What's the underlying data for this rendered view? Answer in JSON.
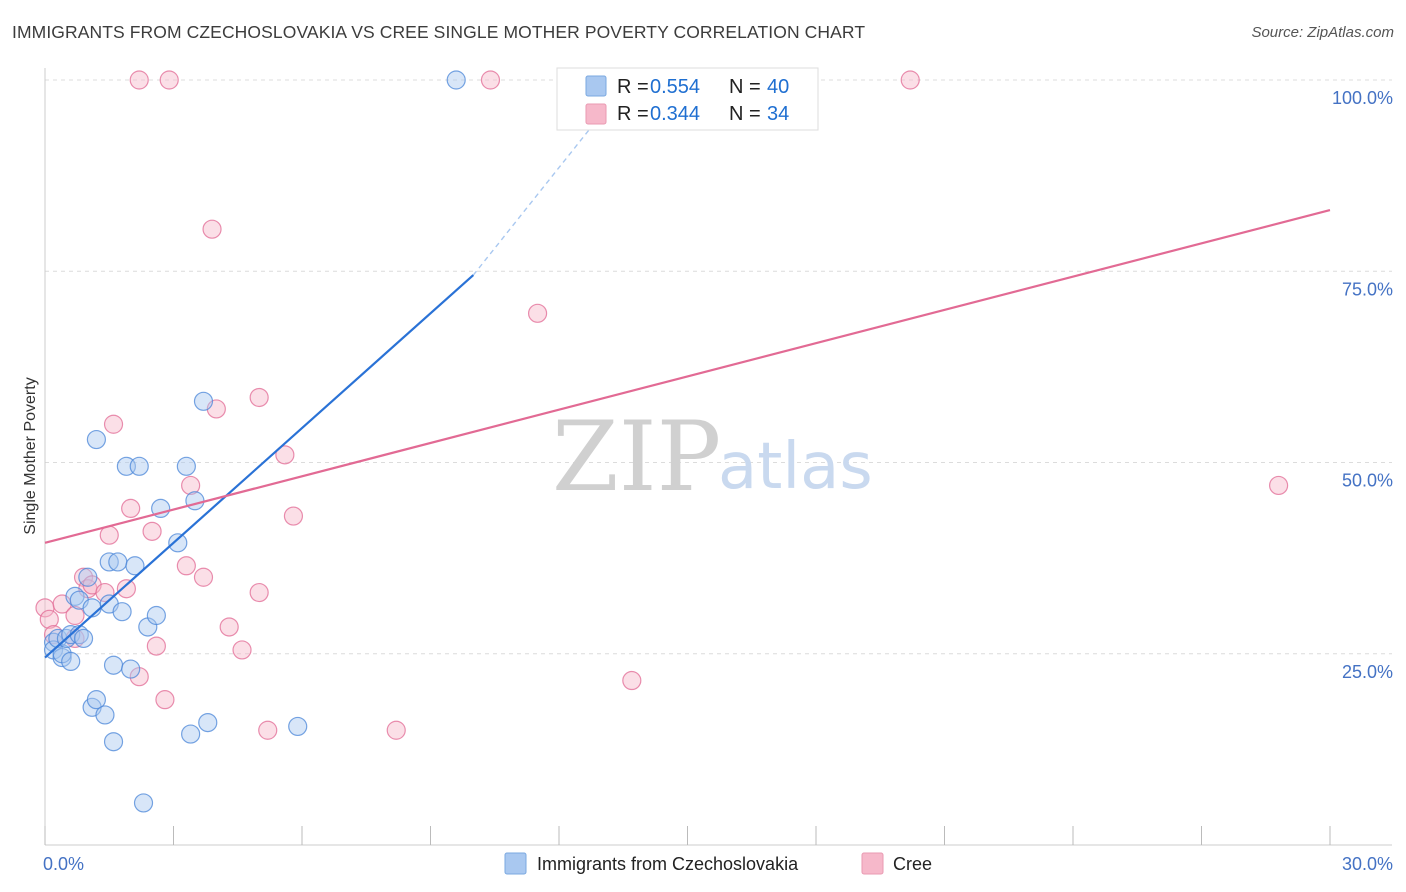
{
  "header": {
    "title": "IMMIGRANTS FROM CZECHOSLOVAKIA VS CREE SINGLE MOTHER POVERTY CORRELATION CHART",
    "source": "Source: ZipAtlas.com"
  },
  "watermark": {
    "zip": "ZIP",
    "atlas": "atlas"
  },
  "legend_box": {
    "rows": [
      {
        "r_label": "R =",
        "r_value": "0.554",
        "n_label": "N =",
        "n_value": "40",
        "color": "#a9c8f0"
      },
      {
        "r_label": "R =",
        "r_value": "0.344",
        "n_label": "N =",
        "n_value": "34",
        "color": "#f6b8ca"
      }
    ]
  },
  "bottom_legend": [
    {
      "label": "Immigrants from Czechoslovakia",
      "color": "#a9c8f0"
    },
    {
      "label": "Cree",
      "color": "#f6b8ca"
    }
  ],
  "chart_data": {
    "type": "scatter",
    "title": "IMMIGRANTS FROM CZECHOSLOVAKIA VS CREE SINGLE MOTHER POVERTY CORRELATION CHART",
    "xlabel": "",
    "ylabel": "Single Mother Poverty",
    "xlim": [
      0,
      30
    ],
    "ylim": [
      0,
      100
    ],
    "x_tick_labels": [
      {
        "value": 0,
        "label": "0.0%"
      },
      {
        "value": 30,
        "label": "30.0%"
      }
    ],
    "y_tick_labels": [
      {
        "value": 25,
        "label": "25.0%"
      },
      {
        "value": 50,
        "label": "50.0%"
      },
      {
        "value": 75,
        "label": "75.0%"
      },
      {
        "value": 100,
        "label": "100.0%"
      }
    ],
    "series": [
      {
        "name": "Immigrants from Czechoslovakia",
        "color": "#4a86d8",
        "fill": "#a9c8f0",
        "r": 0.554,
        "n": 40,
        "trend": {
          "x0": 0.0,
          "y0": 24.5,
          "x1": 10.0,
          "y1": 74.5,
          "solid_until_x": 10.0,
          "dashed_to_x": 13.7,
          "dashed_to_y": 100.5
        },
        "points": [
          [
            0.2,
            26.5
          ],
          [
            0.2,
            25.5
          ],
          [
            0.3,
            27.0
          ],
          [
            0.4,
            24.5
          ],
          [
            0.4,
            25.0
          ],
          [
            0.5,
            27.0
          ],
          [
            0.6,
            24.0
          ],
          [
            0.6,
            27.5
          ],
          [
            0.7,
            32.5
          ],
          [
            0.8,
            32.0
          ],
          [
            0.8,
            27.5
          ],
          [
            0.9,
            27.0
          ],
          [
            1.0,
            35.0
          ],
          [
            1.1,
            31.0
          ],
          [
            1.1,
            18.0
          ],
          [
            1.2,
            53.0
          ],
          [
            1.2,
            19.0
          ],
          [
            1.4,
            17.0
          ],
          [
            1.5,
            31.5
          ],
          [
            1.5,
            37.0
          ],
          [
            1.6,
            23.5
          ],
          [
            1.6,
            13.5
          ],
          [
            1.7,
            37.0
          ],
          [
            1.8,
            30.5
          ],
          [
            1.9,
            49.5
          ],
          [
            2.0,
            23.0
          ],
          [
            2.1,
            36.5
          ],
          [
            2.2,
            49.5
          ],
          [
            2.3,
            5.5
          ],
          [
            2.4,
            28.5
          ],
          [
            2.6,
            30.0
          ],
          [
            2.7,
            44.0
          ],
          [
            3.1,
            39.5
          ],
          [
            3.3,
            49.5
          ],
          [
            3.4,
            14.5
          ],
          [
            3.5,
            45.0
          ],
          [
            3.7,
            58.0
          ],
          [
            3.8,
            16.0
          ],
          [
            5.9,
            15.5
          ],
          [
            9.6,
            100.0
          ]
        ]
      },
      {
        "name": "Cree",
        "color": "#e26a94",
        "fill": "#f6b8ca",
        "r": 0.344,
        "n": 34,
        "trend": {
          "x0": 0.0,
          "y0": 39.5,
          "x1": 30.0,
          "y1": 83.0
        },
        "points": [
          [
            0.0,
            31.0
          ],
          [
            0.1,
            29.5
          ],
          [
            0.2,
            27.5
          ],
          [
            0.4,
            31.5
          ],
          [
            0.7,
            30.0
          ],
          [
            0.7,
            27.0
          ],
          [
            0.9,
            35.0
          ],
          [
            1.0,
            33.5
          ],
          [
            1.1,
            34.0
          ],
          [
            1.4,
            33.0
          ],
          [
            1.5,
            40.5
          ],
          [
            1.6,
            55.0
          ],
          [
            1.9,
            33.5
          ],
          [
            2.0,
            44.0
          ],
          [
            2.2,
            22.0
          ],
          [
            2.5,
            41.0
          ],
          [
            2.6,
            26.0
          ],
          [
            2.8,
            19.0
          ],
          [
            3.3,
            36.5
          ],
          [
            3.4,
            47.0
          ],
          [
            3.7,
            35.0
          ],
          [
            3.9,
            80.5
          ],
          [
            4.0,
            57.0
          ],
          [
            4.3,
            28.5
          ],
          [
            4.6,
            25.5
          ],
          [
            5.0,
            58.5
          ],
          [
            5.0,
            33.0
          ],
          [
            5.2,
            15.0
          ],
          [
            5.6,
            51.0
          ],
          [
            5.8,
            43.0
          ],
          [
            8.2,
            15.0
          ],
          [
            11.5,
            69.5
          ],
          [
            13.7,
            21.5
          ],
          [
            28.8,
            47.0
          ]
        ],
        "top_points": [
          [
            2.2,
            100.0
          ],
          [
            2.9,
            100.0
          ],
          [
            10.4,
            100.0
          ],
          [
            20.2,
            100.0
          ]
        ]
      }
    ]
  }
}
